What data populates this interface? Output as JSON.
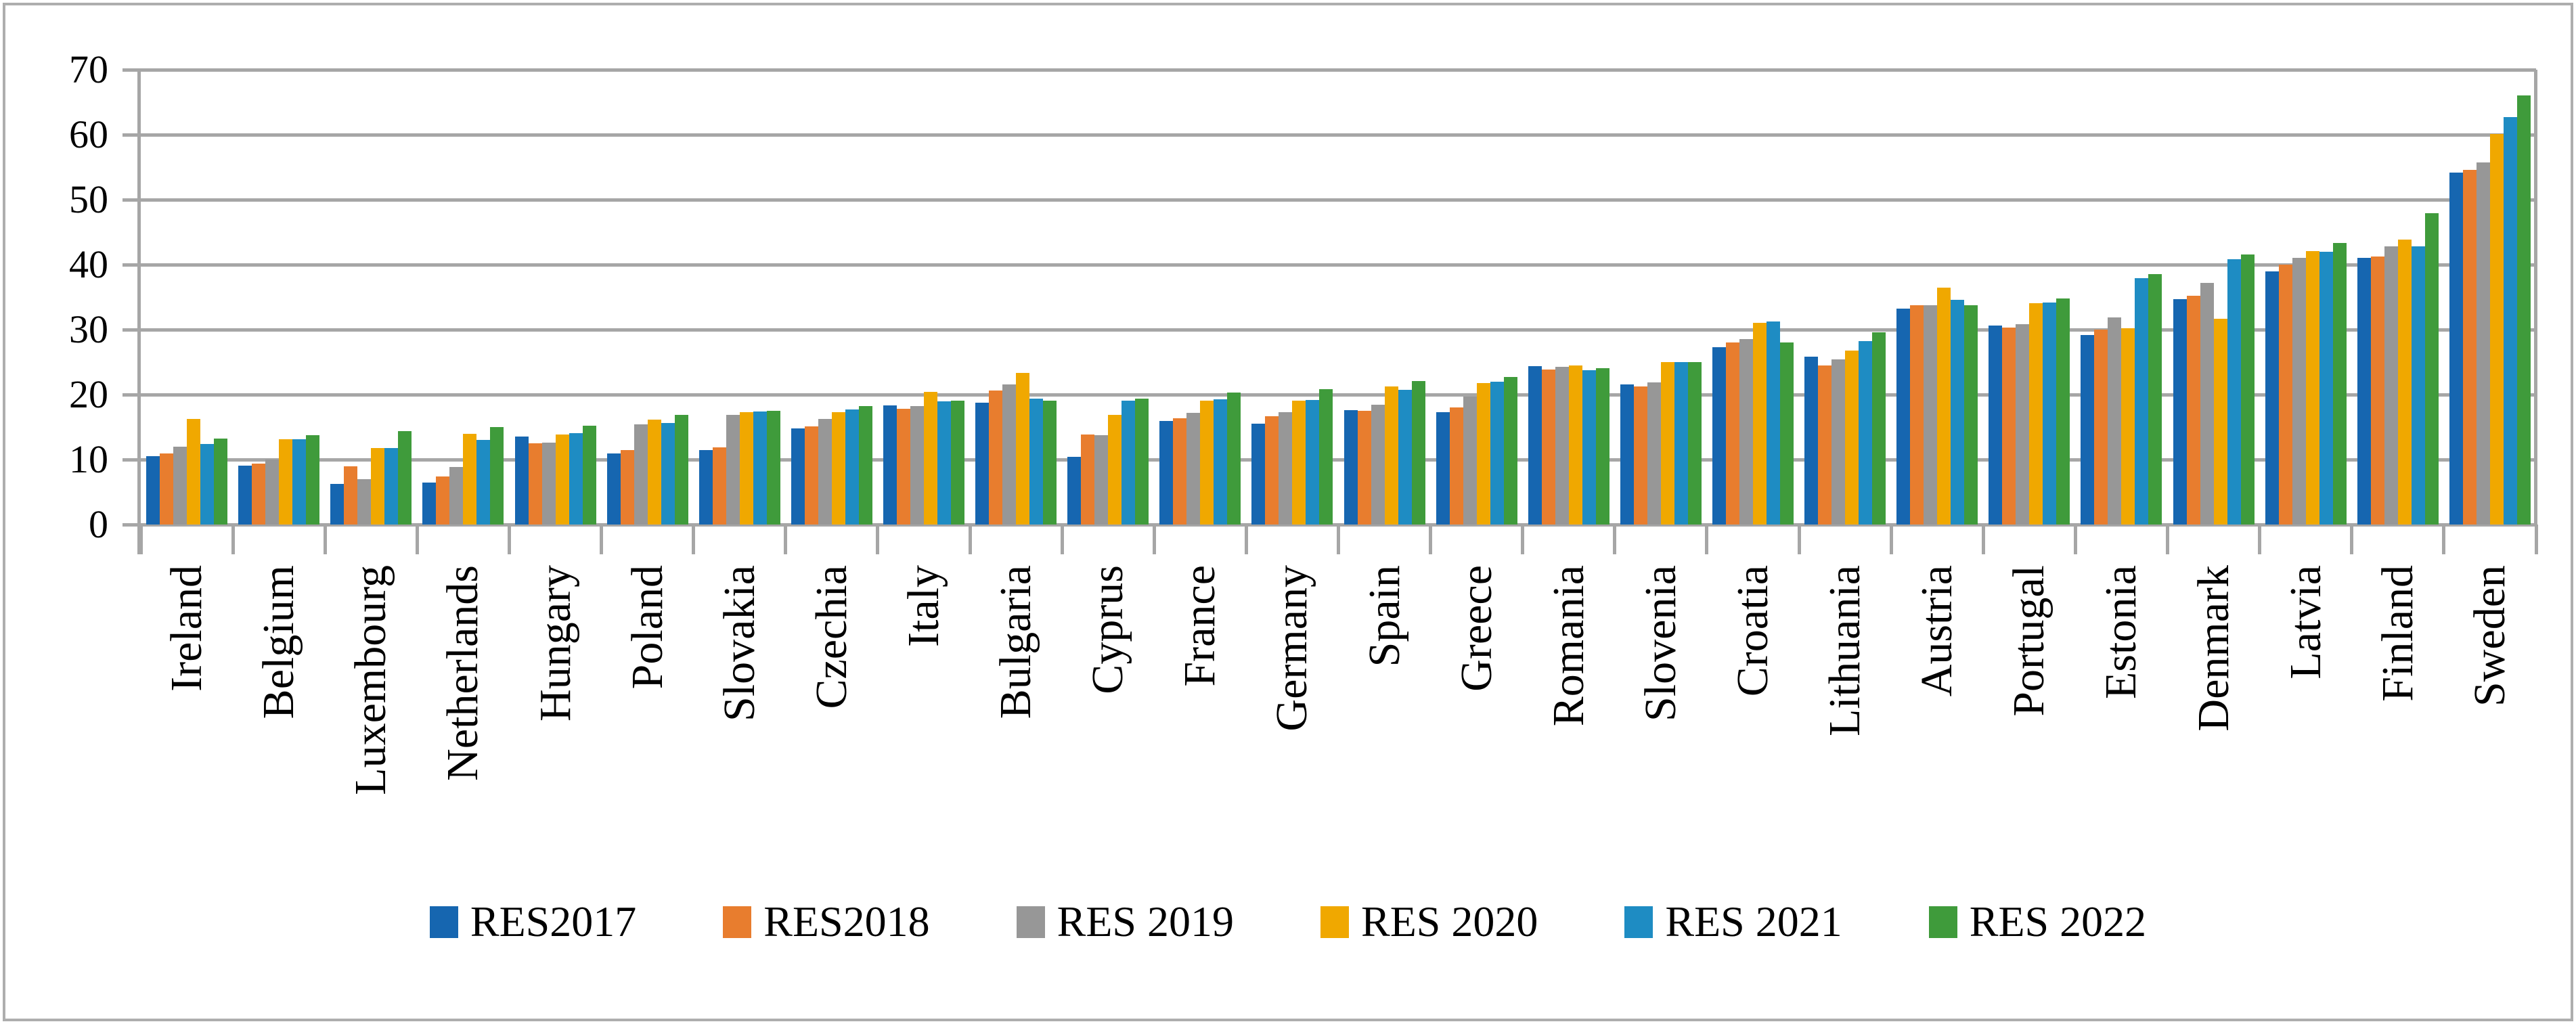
{
  "figure": {
    "background": "#ffffff",
    "border_color": "#aeaeae",
    "axis_color": "#a6a6a6",
    "text_color": "#000000"
  },
  "chart_data": {
    "type": "bar",
    "title": "",
    "xlabel": "",
    "ylabel": "",
    "grid": true,
    "legend_position": "bottom",
    "ylim": [
      0,
      70
    ],
    "yticks": [
      0,
      10,
      20,
      30,
      40,
      50,
      60,
      70
    ],
    "categories": [
      "Ireland",
      "Belgium",
      "Luxembourg",
      "Netherlands",
      "Hungary",
      "Poland",
      "Slovakia",
      "Czechia",
      "Italy",
      "Bulgaria",
      "Cyprus",
      "France",
      "Germany",
      "Spain",
      "Greece",
      "Romania",
      "Slovenia",
      "Croatia",
      "Lithuania",
      "Austria",
      "Portugal",
      "Estonia",
      "Denmark",
      "Latvia",
      "Finland",
      "Sweden"
    ],
    "series": [
      {
        "name": "RES2017",
        "color": "#1666b0",
        "values": [
          10.5,
          9.1,
          6.2,
          6.5,
          13.5,
          10.9,
          11.5,
          14.8,
          18.3,
          18.8,
          10.4,
          15.9,
          15.5,
          17.6,
          17.3,
          24.4,
          21.6,
          27.3,
          25.8,
          33.2,
          30.6,
          29.2,
          34.7,
          39.0,
          41.0,
          54.2
        ]
      },
      {
        "name": "RES2018",
        "color": "#e87d2e",
        "values": [
          10.9,
          9.4,
          9.0,
          7.4,
          12.5,
          11.5,
          11.9,
          15.1,
          17.8,
          20.6,
          13.9,
          16.4,
          16.7,
          17.5,
          18.0,
          23.9,
          21.3,
          28.0,
          24.5,
          33.8,
          30.3,
          30.0,
          35.2,
          40.0,
          41.2,
          54.6
        ]
      },
      {
        "name": "RES 2019",
        "color": "#979797",
        "values": [
          12.0,
          10.0,
          7.0,
          8.9,
          12.6,
          15.4,
          16.9,
          16.2,
          18.2,
          21.6,
          13.7,
          17.2,
          17.3,
          18.4,
          19.7,
          24.3,
          21.9,
          28.5,
          25.4,
          33.8,
          30.8,
          31.9,
          37.2,
          41.0,
          42.8,
          55.7
        ]
      },
      {
        "name": "RES 2020",
        "color": "#f0a800",
        "values": [
          16.3,
          13.1,
          11.8,
          14.0,
          13.9,
          16.1,
          17.3,
          17.3,
          20.4,
          23.3,
          16.9,
          19.1,
          19.1,
          21.2,
          21.8,
          24.5,
          25.0,
          31.0,
          26.8,
          36.5,
          34.1,
          30.2,
          31.7,
          42.1,
          43.9,
          60.1
        ]
      },
      {
        "name": "RES 2021",
        "color": "#1e8cc3",
        "values": [
          12.4,
          13.1,
          11.8,
          13.0,
          14.1,
          15.6,
          17.4,
          17.7,
          19.0,
          19.4,
          19.1,
          19.3,
          19.2,
          20.7,
          22.0,
          23.7,
          25.0,
          31.3,
          28.2,
          34.6,
          34.2,
          37.9,
          40.8,
          42.0,
          42.8,
          62.7
        ]
      },
      {
        "name": "RES 2022",
        "color": "#3f9b3b",
        "values": [
          13.2,
          13.8,
          14.4,
          15.0,
          15.2,
          16.9,
          17.5,
          18.2,
          19.1,
          19.1,
          19.4,
          20.3,
          20.8,
          22.1,
          22.7,
          24.1,
          25.0,
          28.0,
          29.6,
          33.8,
          34.8,
          38.5,
          41.6,
          43.3,
          47.9,
          66.0
        ]
      }
    ]
  }
}
